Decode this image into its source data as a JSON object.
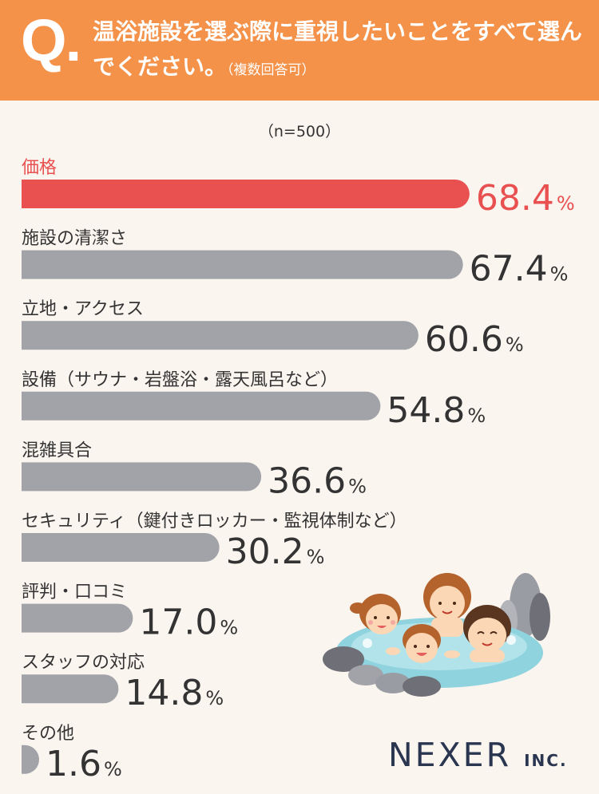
{
  "header": {
    "q_mark": "Q",
    "q_dot": ".",
    "question": "温浴施設を選ぶ際に重視したいことをすべて選んでください。",
    "note": "（複数回答可）"
  },
  "sample": "（n=500）",
  "chart_data": {
    "type": "bar",
    "orientation": "horizontal",
    "unit": "%",
    "xlim": [
      0,
      100
    ],
    "grid": false,
    "categories": [
      "価格",
      "施設の清潔さ",
      "立地・アクセス",
      "設備（サウナ・岩盤浴・露天風呂など）",
      "混雑具合",
      "セキュリティ（鍵付きロッカー・監視体制など）",
      "評判・口コミ",
      "スタッフの対応",
      "その他"
    ],
    "values": [
      68.4,
      67.4,
      60.6,
      54.8,
      36.6,
      30.2,
      17.0,
      14.8,
      1.6
    ],
    "value_labels": [
      "68.4",
      "67.4",
      "60.6",
      "54.8",
      "36.6",
      "30.2",
      "17.0",
      "14.8",
      "1.6"
    ],
    "highlight_index": 0,
    "colors": {
      "highlight": "#e95050",
      "default": "#a2a3a8",
      "label": "#333333"
    }
  },
  "logo": {
    "name": "NEXER",
    "suffix": "INC."
  },
  "illustration": {
    "icon": "hot-spring-family-illustration"
  }
}
